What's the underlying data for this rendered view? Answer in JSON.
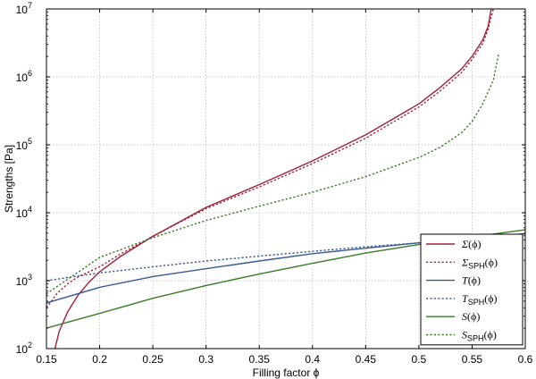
{
  "chart_data": {
    "type": "line",
    "title": "",
    "xlabel": "Filling factor ϕ",
    "ylabel": "Strengths [Pa]",
    "xlim": [
      0.15,
      0.6
    ],
    "ylim": [
      100,
      10000000
    ],
    "yscale": "log",
    "grid": true,
    "legend_position": "bottom-right",
    "x_ticks": [
      {
        "value": 0.15,
        "label": "0.15"
      },
      {
        "value": 0.2,
        "label": "0.2"
      },
      {
        "value": 0.25,
        "label": "0.25"
      },
      {
        "value": 0.3,
        "label": "0.3"
      },
      {
        "value": 0.35,
        "label": "0.35"
      },
      {
        "value": 0.4,
        "label": "0.4"
      },
      {
        "value": 0.45,
        "label": "0.45"
      },
      {
        "value": 0.5,
        "label": "0.5"
      },
      {
        "value": 0.55,
        "label": "0.55"
      },
      {
        "value": 0.6,
        "label": "0.6"
      }
    ],
    "y_ticks": [
      {
        "value": 100,
        "base": "10",
        "exp": "2"
      },
      {
        "value": 1000,
        "base": "10",
        "exp": "3"
      },
      {
        "value": 10000,
        "base": "10",
        "exp": "4"
      },
      {
        "value": 100000,
        "base": "10",
        "exp": "5"
      },
      {
        "value": 1000000,
        "base": "10",
        "exp": "6"
      },
      {
        "value": 10000000,
        "base": "10",
        "exp": "7"
      }
    ],
    "series": [
      {
        "name": "Σ(ϕ)",
        "name_main": "Σ",
        "name_sub": "",
        "name_arg": "(ϕ)",
        "color": "#a0203a",
        "dash": "solid",
        "x": [
          0.158,
          0.162,
          0.17,
          0.18,
          0.19,
          0.2,
          0.22,
          0.25,
          0.3,
          0.35,
          0.4,
          0.45,
          0.5,
          0.52,
          0.54,
          0.55,
          0.56,
          0.565,
          0.568
        ],
        "y": [
          100,
          180,
          350,
          620,
          950,
          1350,
          2300,
          4500,
          12000,
          26000,
          58000,
          140000,
          400000,
          700000,
          1300000,
          2000000,
          3500000,
          5500000,
          10000000
        ]
      },
      {
        "name": "ΣSPH(ϕ)",
        "name_main": "Σ",
        "name_sub": "SPH",
        "name_arg": "(ϕ)",
        "color": "#a0203a",
        "dash": "dotted",
        "x": [
          0.15,
          0.16,
          0.17,
          0.18,
          0.19,
          0.2,
          0.22,
          0.25,
          0.3,
          0.35,
          0.4,
          0.45,
          0.5,
          0.52,
          0.54,
          0.55,
          0.56,
          0.565,
          0.57
        ],
        "y": [
          400,
          650,
          900,
          1150,
          1350,
          1600,
          2500,
          4500,
          11500,
          24000,
          53000,
          125000,
          360000,
          620000,
          1150000,
          1800000,
          3100000,
          5000000,
          10000000
        ]
      },
      {
        "name": "T(ϕ)",
        "name_main": "T",
        "name_sub": "",
        "name_arg": "(ϕ)",
        "color": "#3a5a90",
        "dash": "solid",
        "x": [
          0.15,
          0.2,
          0.25,
          0.3,
          0.35,
          0.4,
          0.45,
          0.5,
          0.55,
          0.6
        ],
        "y": [
          470,
          800,
          1150,
          1500,
          1950,
          2500,
          3000,
          3600,
          4300,
          4900
        ]
      },
      {
        "name": "TSPH(ϕ)",
        "name_main": "T",
        "name_sub": "SPH",
        "name_arg": "(ϕ)",
        "color": "#3a5a90",
        "dash": "dotted",
        "x": [
          0.15,
          0.2,
          0.25,
          0.3,
          0.35,
          0.4,
          0.45,
          0.5,
          0.55,
          0.6
        ],
        "y": [
          1000,
          1300,
          1600,
          1950,
          2300,
          2700,
          3150,
          3600,
          4100,
          4600
        ]
      },
      {
        "name": "S(ϕ)",
        "name_main": "S",
        "name_sub": "",
        "name_arg": "(ϕ)",
        "color": "#3a7a28",
        "dash": "solid",
        "x": [
          0.15,
          0.2,
          0.25,
          0.3,
          0.35,
          0.4,
          0.45,
          0.5,
          0.55,
          0.6
        ],
        "y": [
          200,
          330,
          550,
          850,
          1250,
          1800,
          2550,
          3400,
          4400,
          5600
        ]
      },
      {
        "name": "SSPH(ϕ)",
        "name_main": "S",
        "name_sub": "SPH",
        "name_arg": "(ϕ)",
        "color": "#3a7a28",
        "dash": "dotted",
        "x": [
          0.15,
          0.2,
          0.25,
          0.3,
          0.35,
          0.4,
          0.45,
          0.5,
          0.52,
          0.54,
          0.55,
          0.56,
          0.57,
          0.575
        ],
        "y": [
          640,
          2200,
          4300,
          7700,
          12500,
          20000,
          34000,
          65000,
          92000,
          150000,
          220000,
          400000,
          900000,
          2200000
        ]
      }
    ]
  }
}
